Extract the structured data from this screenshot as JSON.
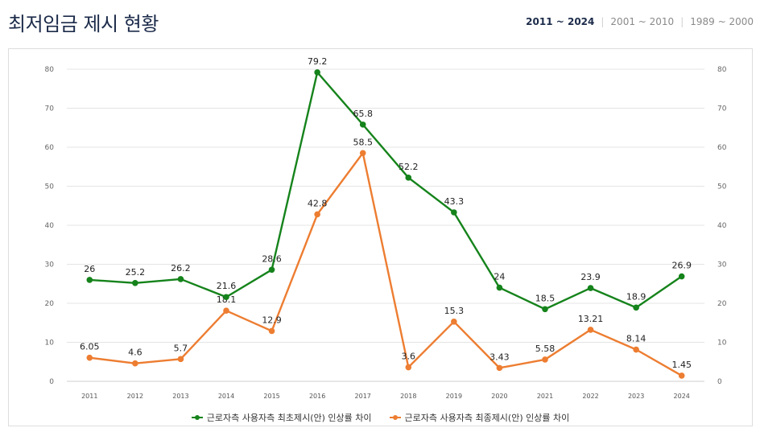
{
  "header": {
    "title": "최저임금 제시 현황",
    "tabs": [
      {
        "label": "2011 ~ 2024",
        "active": true
      },
      {
        "label": "2001 ~ 2010",
        "active": false
      },
      {
        "label": "1989 ~ 2000",
        "active": false
      }
    ]
  },
  "chart_data": {
    "type": "line",
    "categories": [
      "2011",
      "2012",
      "2013",
      "2014",
      "2015",
      "2016",
      "2017",
      "2018",
      "2019",
      "2020",
      "2021",
      "2022",
      "2023",
      "2024"
    ],
    "series": [
      {
        "name": "근로자측 사용자측 최초제시(안) 인상률 차이",
        "color": "#15831b",
        "values": [
          26,
          25.2,
          26.2,
          21.6,
          28.6,
          79.2,
          65.8,
          52.2,
          43.3,
          24,
          18.5,
          23.9,
          18.9,
          26.9
        ],
        "labels": [
          "26",
          "25.2",
          "26.2",
          "21.6",
          "28.6",
          "79.2",
          "65.8",
          "52.2",
          "43.3",
          "24",
          "18.5",
          "23.9",
          "18.9",
          "26.9"
        ]
      },
      {
        "name": "근로자측 사용자측 최종제시(안) 인상률 차이",
        "color": "#ed7d31",
        "values": [
          6.05,
          4.6,
          5.7,
          18.1,
          12.9,
          42.8,
          58.5,
          3.6,
          15.3,
          3.43,
          5.58,
          13.21,
          8.14,
          1.45
        ],
        "labels": [
          "6.05",
          "4.6",
          "5.7",
          "18.1",
          "12.9",
          "42.8",
          "58.5",
          "3.6",
          "15.3",
          "3.43",
          "5.58",
          "13.21",
          "8.14",
          "1.45"
        ]
      }
    ],
    "yticks": [
      "0",
      "10",
      "20",
      "30",
      "40",
      "50",
      "60",
      "70",
      "80"
    ],
    "ylim": [
      0,
      80
    ],
    "grid": true,
    "legend_position": "bottom"
  }
}
